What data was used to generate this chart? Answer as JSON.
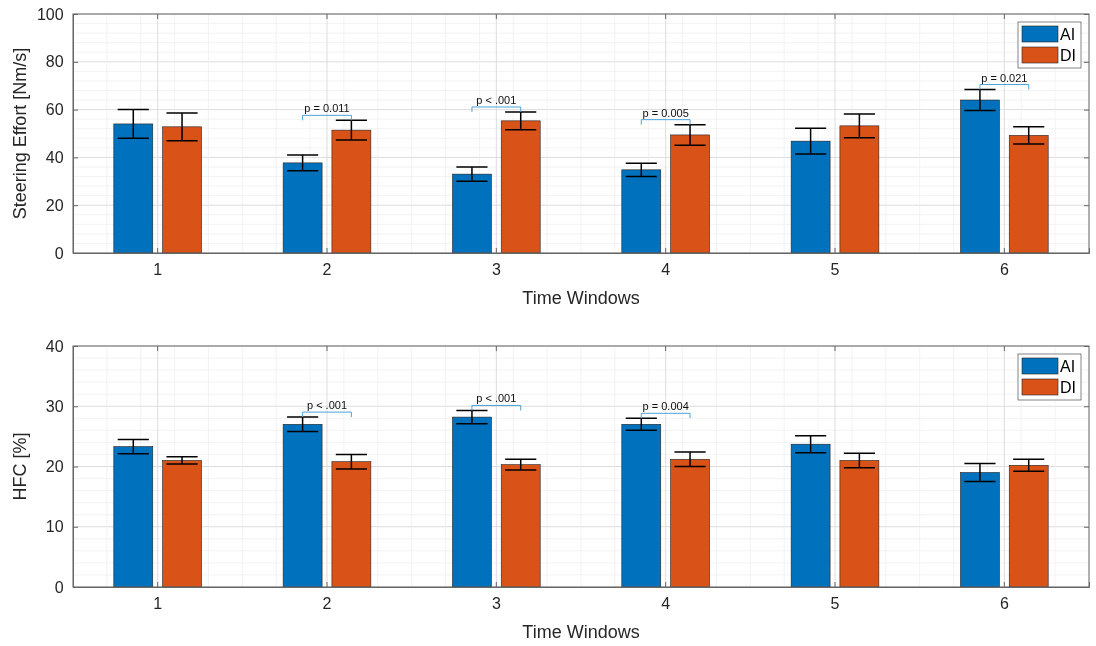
{
  "chart_data": [
    {
      "type": "bar",
      "xlabel": "Time Windows",
      "ylabel": "Steering Effort [Nm/s]",
      "categories": [
        "1",
        "2",
        "3",
        "4",
        "5",
        "6"
      ],
      "ylim": [
        0,
        100
      ],
      "yticks": [
        0,
        20,
        40,
        60,
        80,
        100
      ],
      "grid": true,
      "legend": "top right",
      "series": [
        {
          "name": "AI",
          "color": "#0072bd",
          "values": [
            54,
            37.7,
            33,
            34.8,
            46.8,
            64
          ],
          "errors": [
            6,
            3.3,
            3,
            2.8,
            5.4,
            4.4
          ]
        },
        {
          "name": "DI",
          "color": "#d95319",
          "values": [
            52.8,
            51.4,
            55.3,
            49.4,
            53.2,
            49.2
          ],
          "errors": [
            5.8,
            4.1,
            3.7,
            4.3,
            5,
            3.6
          ]
        }
      ],
      "annotations": [
        "p = 0.011",
        "p < .001",
        "p = 0.005",
        "p = 0.021"
      ]
    },
    {
      "type": "bar",
      "xlabel": "Time Windows",
      "ylabel": "HFC [%]",
      "categories": [
        "1",
        "2",
        "3",
        "4",
        "5",
        "6"
      ],
      "ylim": [
        0,
        40
      ],
      "yticks": [
        0,
        10,
        20,
        30,
        40
      ],
      "grid": true,
      "legend": "top right",
      "series": [
        {
          "name": "AI",
          "color": "#0072bd",
          "values": [
            23.3,
            27,
            28.2,
            27,
            23.7,
            19
          ],
          "errors": [
            1.2,
            1.2,
            1.1,
            1,
            1.4,
            1.5
          ]
        },
        {
          "name": "DI",
          "color": "#d95319",
          "values": [
            21,
            20.8,
            20.3,
            21.2,
            21,
            20.2
          ],
          "errors": [
            0.6,
            1.2,
            0.9,
            1.2,
            1.2,
            1
          ]
        }
      ],
      "annotations": [
        "p < .001",
        "p < .001",
        "p = 0.004"
      ]
    }
  ]
}
